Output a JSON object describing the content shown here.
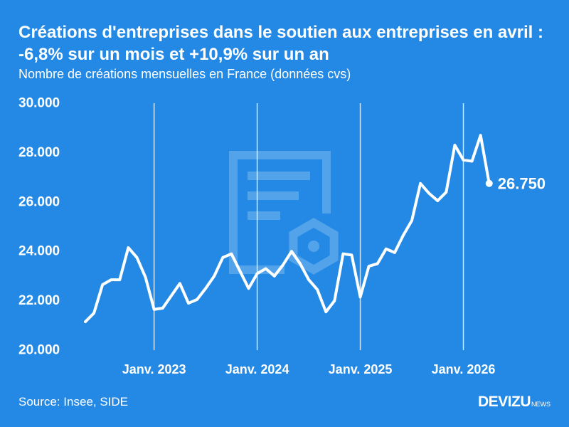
{
  "colors": {
    "background": "#2389e5",
    "text": "#ffffff"
  },
  "watermark": {
    "icon": "document-gear-icon"
  },
  "chart_data": {
    "type": "line",
    "title": [
      "Créations d'entreprises dans le soutien aux entreprises en avril :",
      "-6,8% sur un mois et +10,9% sur un an"
    ],
    "subtitle": "Nombre de créations mensuelles en France (données cvs)",
    "x": [
      "2022-05",
      "2022-06",
      "2022-07",
      "2022-08",
      "2022-09",
      "2022-10",
      "2022-11",
      "2022-12",
      "2023-01",
      "2023-02",
      "2023-03",
      "2023-04",
      "2023-05",
      "2023-06",
      "2023-07",
      "2023-08",
      "2023-09",
      "2023-10",
      "2023-11",
      "2023-12",
      "2024-01",
      "2024-02",
      "2024-03",
      "2024-04",
      "2024-05",
      "2024-06",
      "2024-07",
      "2024-08",
      "2024-09",
      "2024-10",
      "2024-11",
      "2024-12",
      "2025-01",
      "2025-02",
      "2025-03",
      "2025-04",
      "2025-05",
      "2025-06",
      "2025-07",
      "2025-08",
      "2025-09",
      "2025-10",
      "2025-11",
      "2025-12",
      "2026-01",
      "2026-02",
      "2026-03",
      "2026-04"
    ],
    "series": [
      {
        "color": "#ffffff",
        "values": [
          21150,
          21500,
          22650,
          22850,
          22850,
          24150,
          23750,
          22950,
          21650,
          21700,
          22200,
          22700,
          21900,
          22050,
          22500,
          23000,
          23750,
          23900,
          23200,
          22500,
          23100,
          23300,
          23000,
          23450,
          24000,
          23500,
          22850,
          22450,
          21550,
          22000,
          23900,
          23850,
          22150,
          23400,
          23500,
          24100,
          23950,
          24650,
          25250,
          26750,
          26350,
          26050,
          26400,
          28300,
          27700,
          27650,
          28700,
          26750
        ]
      }
    ],
    "ylim": [
      20000,
      30000
    ],
    "yticks": [
      {
        "value": 30000,
        "label": "30.000"
      },
      {
        "value": 28000,
        "label": "28.000"
      },
      {
        "value": 26000,
        "label": "26.000"
      },
      {
        "value": 24000,
        "label": "24.000"
      },
      {
        "value": 22000,
        "label": "22.000"
      },
      {
        "value": 20000,
        "label": "20.000"
      }
    ],
    "xticks": [
      {
        "date": "2023-01",
        "label": "Janv. 2023"
      },
      {
        "date": "2024-01",
        "label": "Janv. 2024"
      },
      {
        "date": "2025-01",
        "label": "Janv. 2025"
      },
      {
        "date": "2026-01",
        "label": "Janv. 2026"
      }
    ],
    "data_labels": [
      {
        "date": "2026-04",
        "value": 26750,
        "label": "26.750"
      }
    ],
    "grid": {
      "vertical": true,
      "horizontal": false
    }
  },
  "footer": {
    "source": "Source: Insee, SIDE",
    "logo": {
      "brand": "DEVIZU",
      "suffix": "NEWS"
    }
  }
}
